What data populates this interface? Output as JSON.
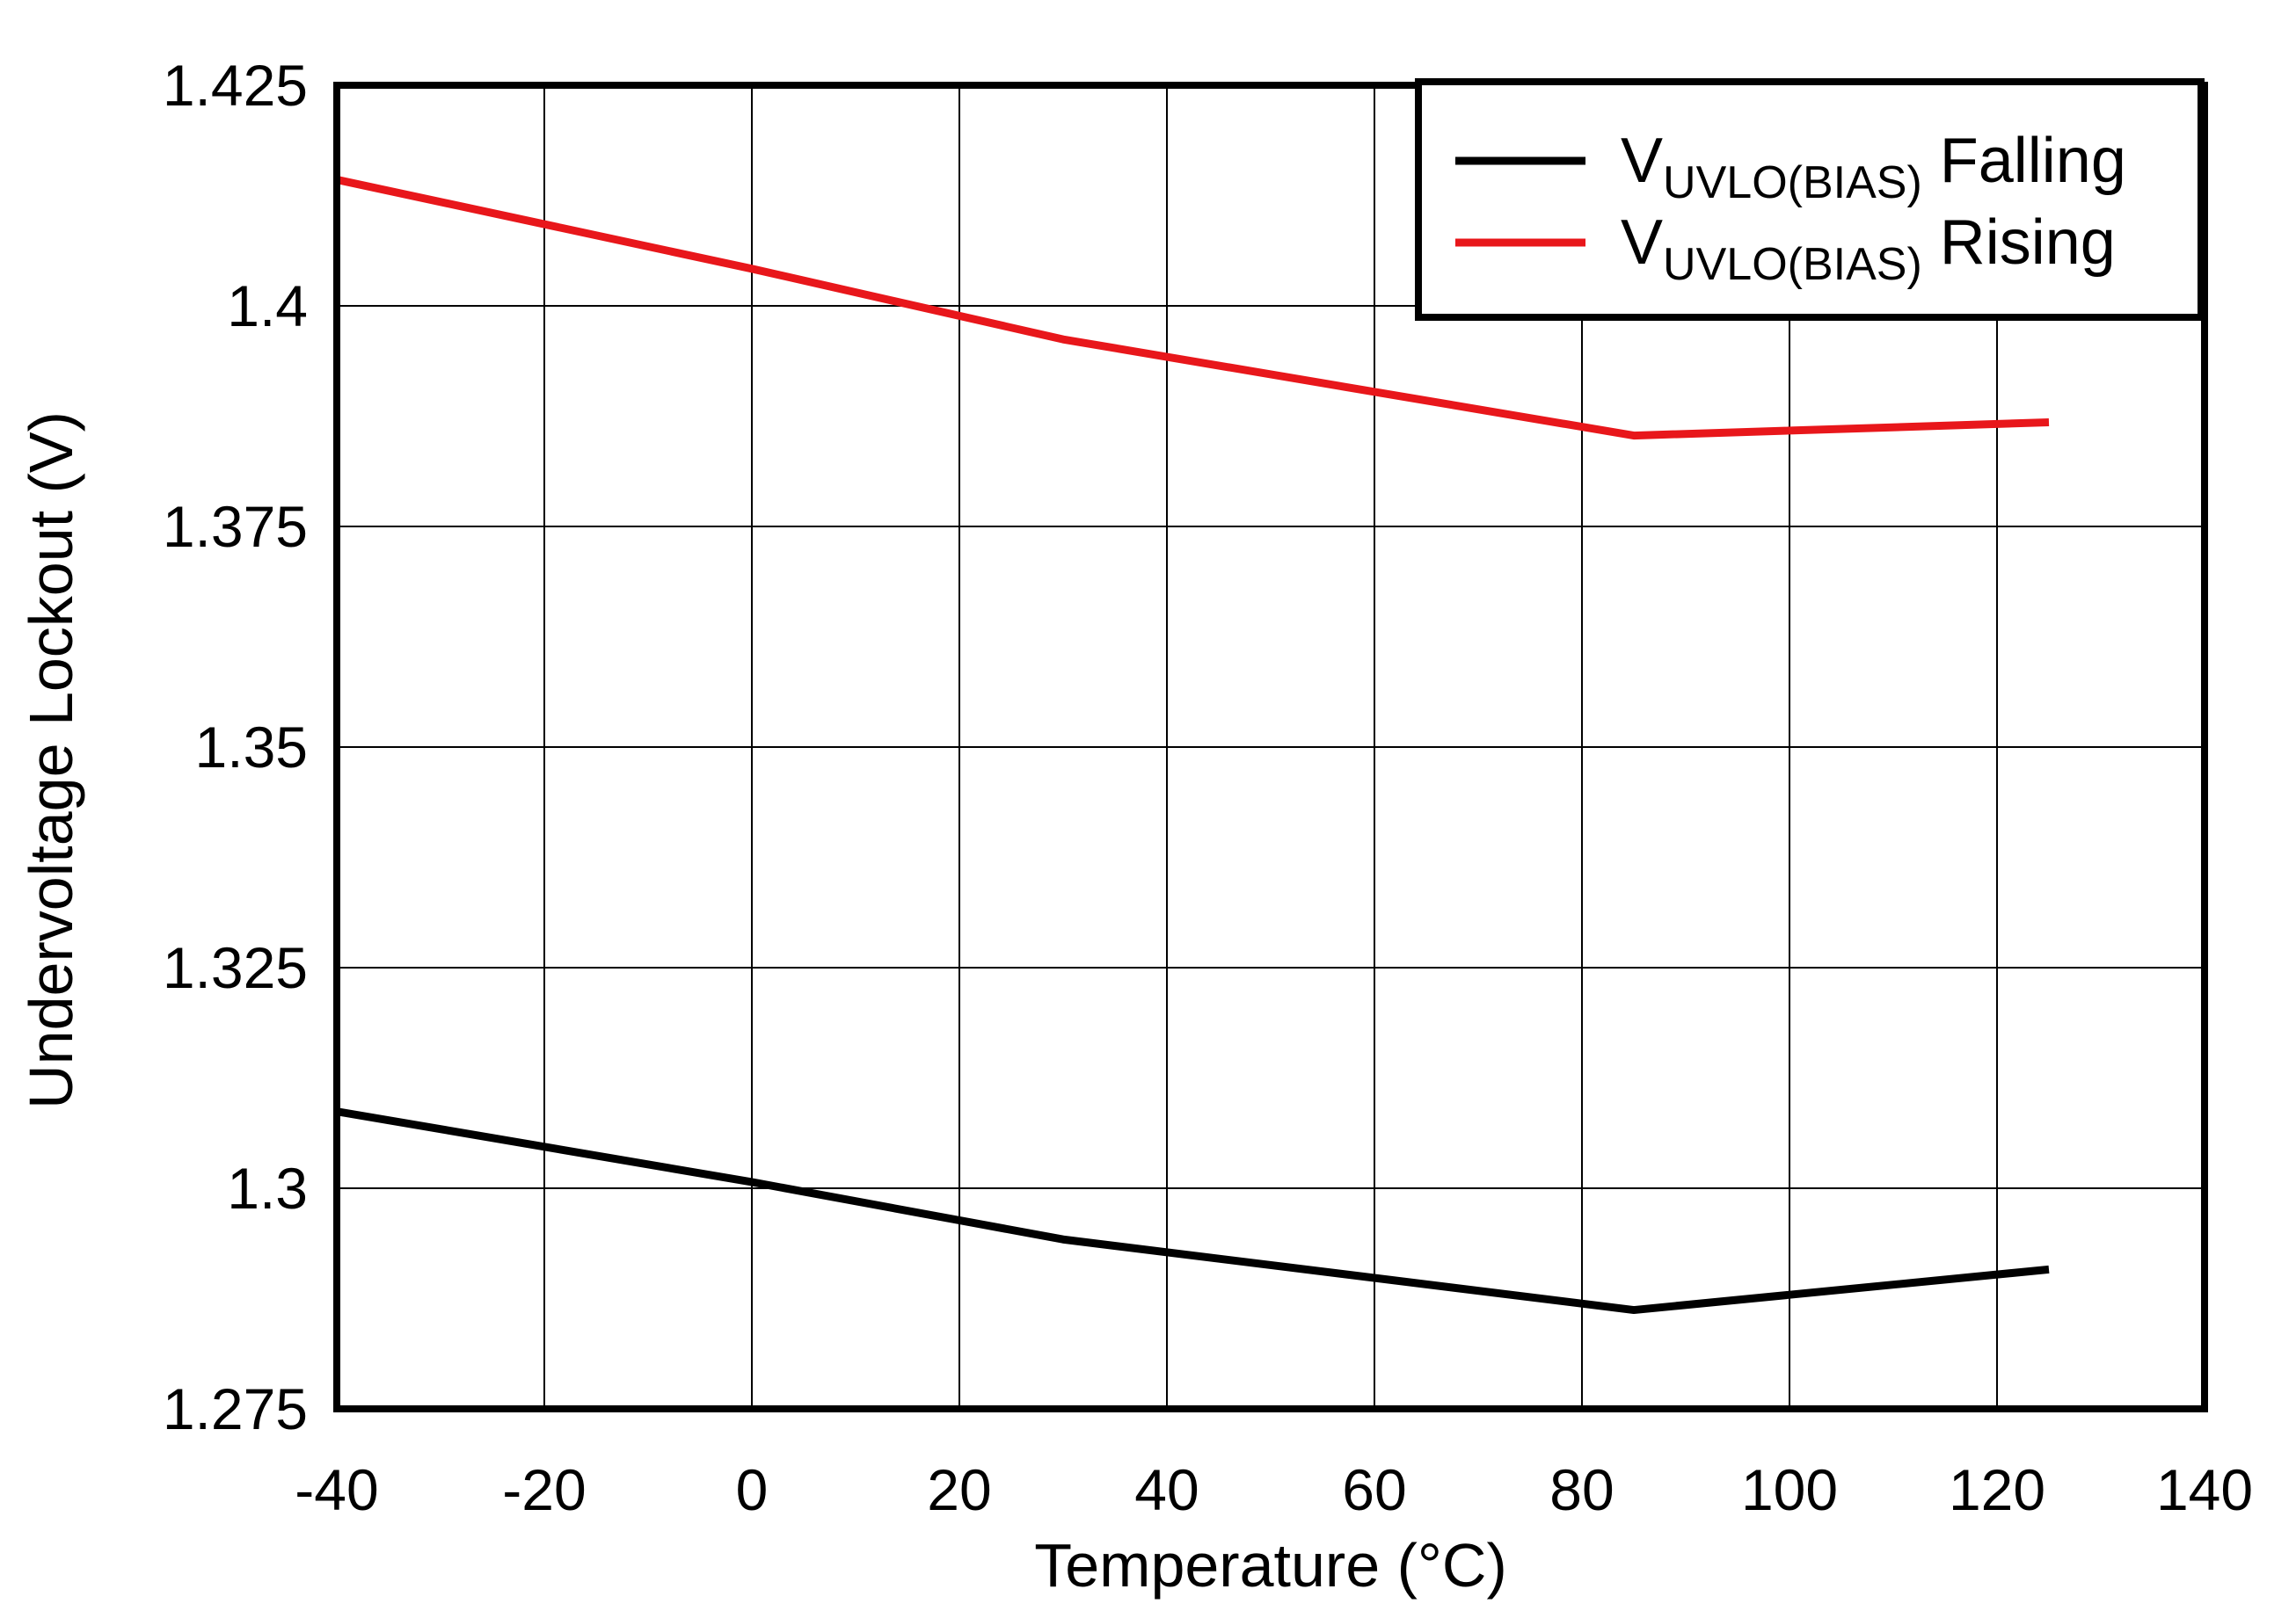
{
  "chart_data": {
    "type": "line",
    "title": "",
    "xlabel": "Temperature (°C)",
    "ylabel": "Undervoltage Lockout (V)",
    "xlim": [
      -40,
      140
    ],
    "ylim": [
      1.275,
      1.425
    ],
    "x_ticks": [
      "-40",
      "-20",
      "0",
      "20",
      "40",
      "60",
      "80",
      "100",
      "120",
      "140"
    ],
    "y_ticks": [
      "1.275",
      "1.3",
      "1.325",
      "1.35",
      "1.375",
      "1.4",
      "1.425"
    ],
    "x_tick_values": [
      -40,
      -20,
      0,
      20,
      40,
      60,
      80,
      100,
      120,
      140
    ],
    "y_tick_values": [
      1.275,
      1.3,
      1.325,
      1.35,
      1.375,
      1.4,
      1.425
    ],
    "grid": true,
    "legend_position": "top-right",
    "series": [
      {
        "name": "VUVLO(BIAS) Falling",
        "label_main": "V",
        "label_sub": "UVLO(BIAS)",
        "label_suffix": " Falling",
        "color": "#000000",
        "x": [
          -40,
          0,
          30,
          85,
          125
        ],
        "values": [
          1.3087,
          1.3007,
          1.2942,
          1.2862,
          1.2908
        ]
      },
      {
        "name": "VUVLO(BIAS) Rising",
        "label_main": "V",
        "label_sub": "UVLO(BIAS)",
        "label_suffix": " Rising",
        "color": "#e8171b",
        "x": [
          -40,
          0,
          30,
          85,
          125
        ],
        "values": [
          1.4143,
          1.4042,
          1.3962,
          1.3853,
          1.3868
        ]
      }
    ]
  }
}
